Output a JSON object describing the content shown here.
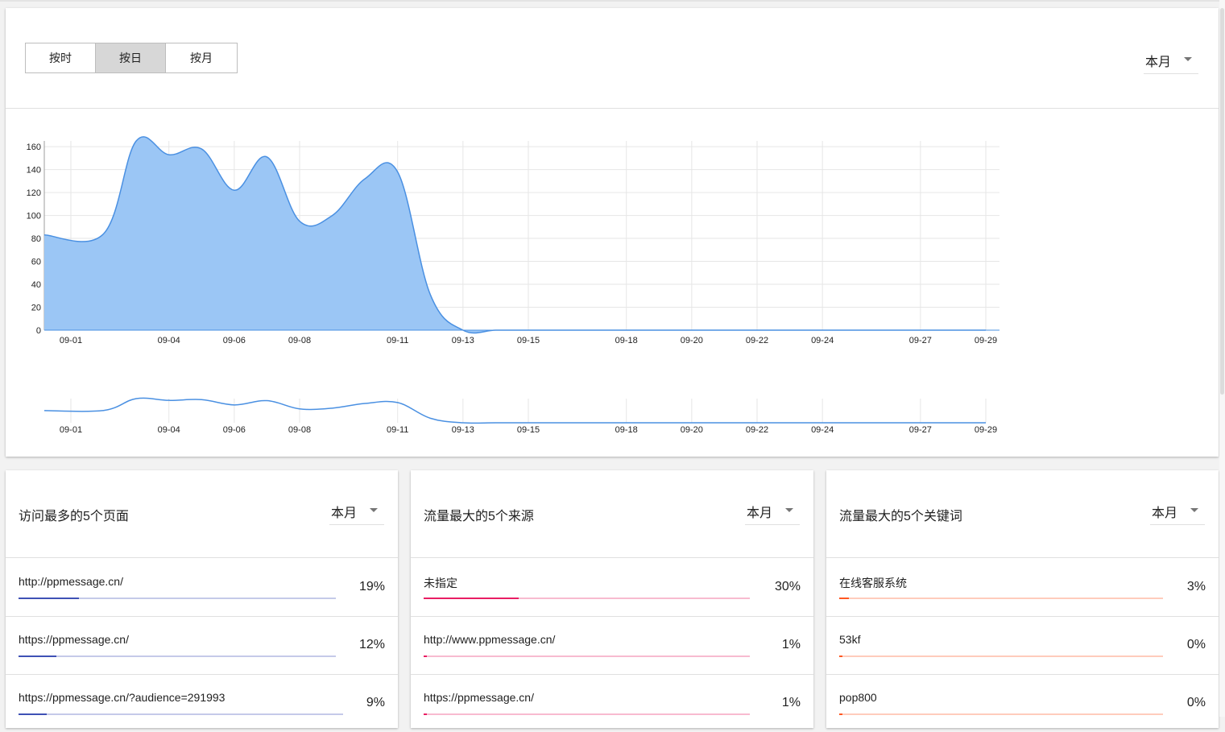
{
  "granularity_tabs": [
    {
      "label": "按时",
      "active": false
    },
    {
      "label": "按日",
      "active": true
    },
    {
      "label": "按月",
      "active": false
    }
  ],
  "chart_range": "本月",
  "chart_data": {
    "type": "area",
    "x": [
      "09-01",
      "09-02",
      "09-03",
      "09-04",
      "09-05",
      "09-06",
      "09-07",
      "09-08",
      "09-09",
      "09-10",
      "09-11",
      "09-12",
      "09-13",
      "09-14",
      "09-15",
      "09-16",
      "09-17",
      "09-18",
      "09-19",
      "09-20",
      "09-21",
      "09-22",
      "09-23",
      "09-24",
      "09-25",
      "09-26",
      "09-27",
      "09-28",
      "09-29"
    ],
    "y": [
      83,
      84,
      165,
      153,
      158,
      122,
      151,
      95,
      100,
      132,
      138,
      31,
      0,
      0,
      0,
      0,
      0,
      0,
      0,
      0,
      0,
      0,
      0,
      0,
      0,
      0,
      0,
      0,
      0
    ],
    "xtick_labels": [
      "09-01",
      "09-04",
      "09-06",
      "09-08",
      "09-11",
      "09-13",
      "09-15",
      "09-18",
      "09-20",
      "09-22",
      "09-24",
      "09-27",
      "09-29"
    ],
    "ytick_labels": [
      "0",
      "20",
      "40",
      "60",
      "80",
      "100",
      "120",
      "140",
      "160"
    ],
    "ylim": [
      0,
      165
    ],
    "fill_color": "#9bc6f5",
    "line_color": "#4a90e2",
    "grid": true,
    "title": "",
    "xlabel": "",
    "ylabel": ""
  },
  "panels": [
    {
      "title": "访问最多的5个页面",
      "range": "本月",
      "accent": "#3f51b5",
      "track": "#c5cae9",
      "rows": [
        {
          "label": "http://ppmessage.cn/",
          "percent": "19%",
          "fill": 0.19
        },
        {
          "label": "https://ppmessage.cn/",
          "percent": "12%",
          "fill": 0.12
        },
        {
          "label": "https://ppmessage.cn/?audience=291993",
          "percent": "9%",
          "fill": 0.09
        }
      ]
    },
    {
      "title": "流量最大的5个来源",
      "range": "本月",
      "accent": "#e91e63",
      "track": "#f8bbd0",
      "rows": [
        {
          "label": "未指定",
          "percent": "30%",
          "fill": 0.3
        },
        {
          "label": "http://www.ppmessage.cn/",
          "percent": "1%",
          "fill": 0.01
        },
        {
          "label": "https://ppmessage.cn/",
          "percent": "1%",
          "fill": 0.01
        }
      ]
    },
    {
      "title": "流量最大的5个关键词",
      "range": "本月",
      "accent": "#ff5722",
      "track": "#ffccbc",
      "rows": [
        {
          "label": "在线客服系统",
          "percent": "3%",
          "fill": 0.03
        },
        {
          "label": "53kf",
          "percent": "0%",
          "fill": 0.0
        },
        {
          "label": "pop800",
          "percent": "0%",
          "fill": 0.0
        }
      ]
    }
  ]
}
